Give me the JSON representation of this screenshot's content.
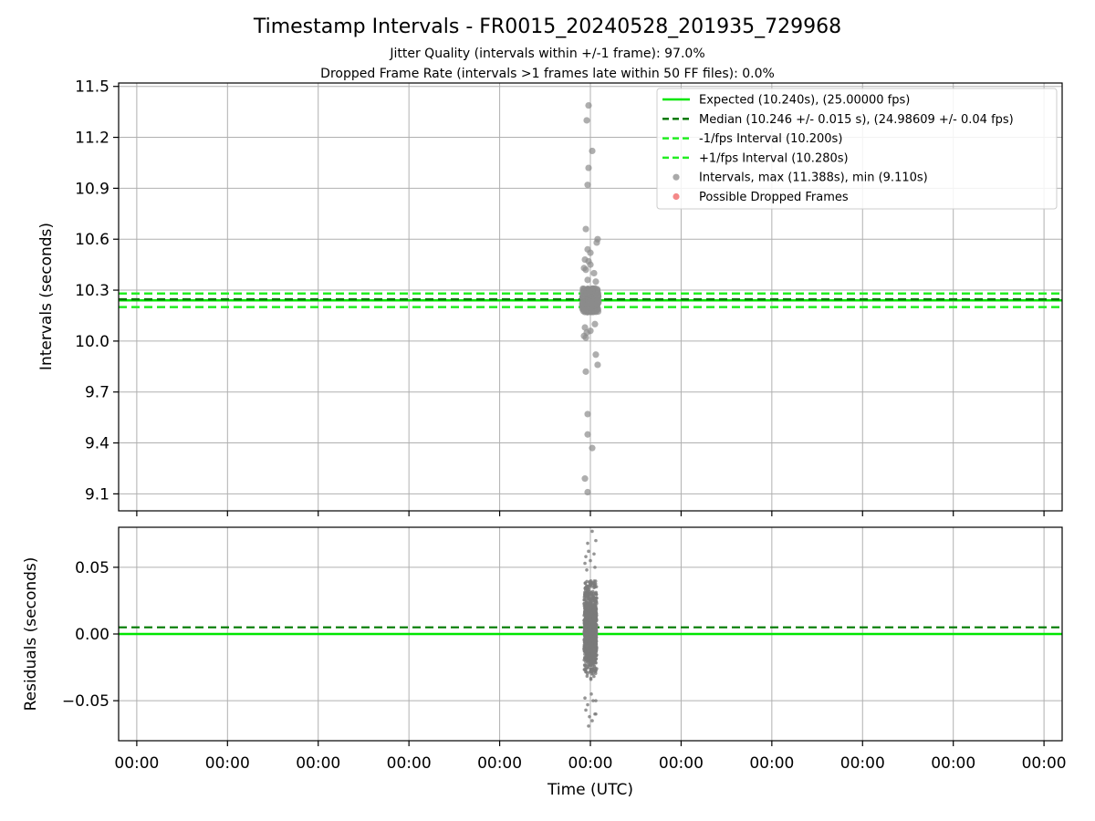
{
  "title": "Timestamp Intervals - FR0015_20240528_201935_729968",
  "subtitle_1": "Jitter Quality (intervals within +/-1 frame): 97.0%",
  "subtitle_2": "Dropped Frame Rate (intervals >1 frames late within 50 FF files): 0.0%",
  "colors": {
    "expected": "#00e600",
    "median": "#007a00",
    "fps_interval": "#22ee22",
    "points": "#8c8c8c",
    "dropped": "#f06060"
  },
  "chart_data": [
    {
      "type": "scatter",
      "ylabel": "Intervals (seconds)",
      "ylim": [
        9.0,
        11.52
      ],
      "yticks": [
        "9.1",
        "9.4",
        "9.7",
        "10.0",
        "10.3",
        "10.6",
        "10.9",
        "11.2",
        "11.5"
      ],
      "grid": true,
      "legend_position": "top-right",
      "legend": [
        {
          "label": "Expected (10.240s), (25.00000 fps)",
          "style": "solid",
          "color": "#00e600"
        },
        {
          "label": "Median (10.246 +/- 0.015 s), (24.98609 +/- 0.04 fps)",
          "style": "dashed",
          "color": "#007a00"
        },
        {
          "label": "-1/fps Interval (10.200s)",
          "style": "dashed",
          "color": "#22ee22"
        },
        {
          "label": "+1/fps Interval (10.280s)",
          "style": "dashed",
          "color": "#22ee22"
        },
        {
          "label": "Intervals, max (11.388s), min (9.110s)",
          "style": "dot",
          "color": "#8c8c8c"
        },
        {
          "label": "Possible Dropped Frames",
          "style": "dot",
          "color": "#f06060"
        }
      ],
      "hlines": {
        "expected": 10.24,
        "median": 10.246,
        "minus_fps": 10.2,
        "plus_fps": 10.28
      },
      "outliers": [
        {
          "x": -0.02,
          "y": 11.388
        },
        {
          "x": -0.04,
          "y": 11.3
        },
        {
          "x": 0.02,
          "y": 11.12
        },
        {
          "x": -0.02,
          "y": 11.02
        },
        {
          "x": -0.03,
          "y": 10.92
        },
        {
          "x": -0.05,
          "y": 10.66
        },
        {
          "x": 0.08,
          "y": 10.6
        },
        {
          "x": 0.07,
          "y": 10.58
        },
        {
          "x": -0.03,
          "y": 10.54
        },
        {
          "x": 0.0,
          "y": 10.52
        },
        {
          "x": -0.06,
          "y": 10.48
        },
        {
          "x": -0.02,
          "y": 10.47
        },
        {
          "x": 0.0,
          "y": 10.45
        },
        {
          "x": -0.07,
          "y": 10.43
        },
        {
          "x": -0.05,
          "y": 10.42
        },
        {
          "x": 0.04,
          "y": 10.4
        },
        {
          "x": -0.03,
          "y": 10.36
        },
        {
          "x": 0.06,
          "y": 10.35
        },
        {
          "x": 0.05,
          "y": 10.1
        },
        {
          "x": -0.06,
          "y": 10.08
        },
        {
          "x": 0.0,
          "y": 10.06
        },
        {
          "x": -0.04,
          "y": 10.05
        },
        {
          "x": -0.07,
          "y": 10.03
        },
        {
          "x": -0.05,
          "y": 10.02
        },
        {
          "x": 0.06,
          "y": 9.92
        },
        {
          "x": 0.08,
          "y": 9.86
        },
        {
          "x": -0.05,
          "y": 9.82
        },
        {
          "x": -0.03,
          "y": 9.57
        },
        {
          "x": -0.03,
          "y": 9.45
        },
        {
          "x": 0.02,
          "y": 9.37
        },
        {
          "x": -0.06,
          "y": 9.19
        },
        {
          "x": -0.03,
          "y": 9.11
        }
      ],
      "cluster": {
        "y_min": 10.17,
        "y_max": 10.31,
        "x_half_width": 0.09
      }
    },
    {
      "type": "scatter",
      "ylabel": "Residuals (seconds)",
      "xlabel": "Time (UTC)",
      "ylim": [
        -0.08,
        0.08
      ],
      "yticks": [
        "−0.05",
        "0.00",
        "0.05"
      ],
      "xticks": [
        "00:00",
        "00:00",
        "00:00",
        "00:00",
        "00:00",
        "00:00",
        "00:00",
        "00:00",
        "00:00",
        "00:00",
        "00:00"
      ],
      "grid": true,
      "hlines": {
        "expected": 0.0,
        "median": 0.005
      },
      "cluster": {
        "y_min": -0.04,
        "y_max": 0.045,
        "x_half_width": 0.07
      },
      "tails": [
        {
          "x": 0.02,
          "y": 0.077
        },
        {
          "x": 0.06,
          "y": 0.07
        },
        {
          "x": -0.03,
          "y": 0.068
        },
        {
          "x": -0.02,
          "y": 0.062
        },
        {
          "x": 0.04,
          "y": 0.06
        },
        {
          "x": -0.05,
          "y": 0.058
        },
        {
          "x": 0.0,
          "y": 0.055
        },
        {
          "x": -0.06,
          "y": 0.053
        },
        {
          "x": 0.05,
          "y": 0.05
        },
        {
          "x": -0.04,
          "y": 0.048
        },
        {
          "x": 0.01,
          "y": -0.045
        },
        {
          "x": -0.06,
          "y": -0.048
        },
        {
          "x": 0.03,
          "y": -0.05
        },
        {
          "x": -0.03,
          "y": -0.053
        },
        {
          "x": 0.06,
          "y": -0.05
        },
        {
          "x": -0.05,
          "y": -0.057
        },
        {
          "x": 0.05,
          "y": -0.06
        },
        {
          "x": -0.01,
          "y": -0.062
        },
        {
          "x": 0.02,
          "y": -0.065
        },
        {
          "x": 0.06,
          "y": -0.06
        },
        {
          "x": -0.02,
          "y": -0.069
        }
      ]
    }
  ]
}
